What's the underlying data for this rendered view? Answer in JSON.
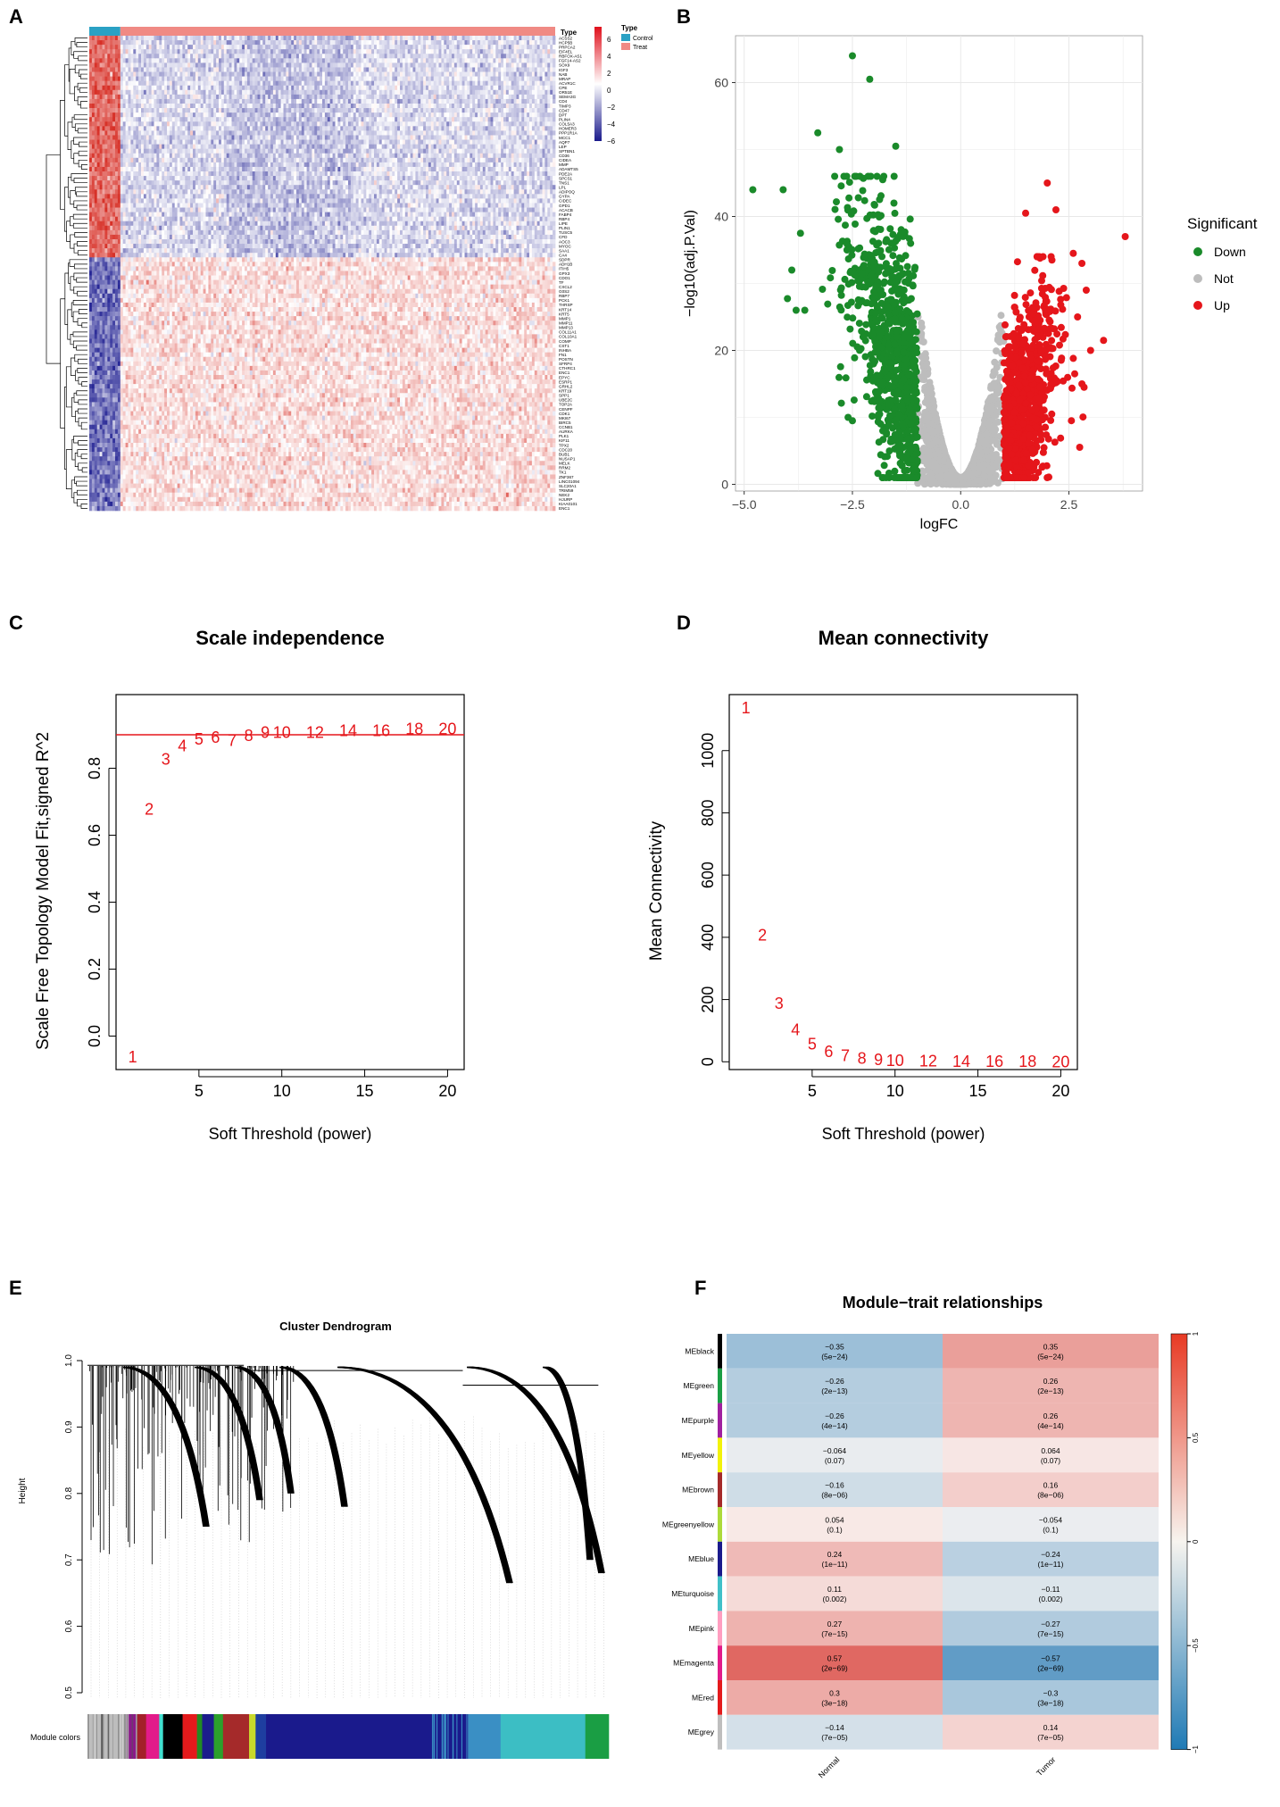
{
  "panel_labels": [
    "A",
    "B",
    "C",
    "D",
    "E",
    "F"
  ],
  "chart_data": [
    {
      "id": "A",
      "type": "heatmap",
      "annotation_title": "Type",
      "legend_title": "Type",
      "legend_entries": [
        {
          "label": "Control",
          "color": "#2aa1c4"
        },
        {
          "label": "Treat",
          "color": "#f08a84"
        }
      ],
      "color_scale": {
        "ticks": [
          "6",
          "4",
          "2",
          "0",
          "−2",
          "−4",
          "−6"
        ],
        "colors": [
          "#d7191c",
          "#ffffff",
          "#1a1a8c"
        ]
      },
      "genes": [
        "ACSS2",
        "HCP5B",
        "PRPCA2",
        "EIF4EL",
        "RBFOX-AS1",
        "FGF14-AS2",
        "SOX9",
        "IGF3",
        "NAB",
        "MRAP",
        "ACVR1C",
        "CPE",
        "OR51E",
        "SEMA3G",
        "CD4",
        "TIMP3",
        "CD47",
        "DPT",
        "PLIN4",
        "COL5A3",
        "HOMER3",
        "PPP1R1A",
        "MCC1",
        "AQP7",
        "LEP",
        "SPTBN1",
        "CD36",
        "CIDEA",
        "MMP",
        "ADAMTS5",
        "PDE2A",
        "SPCS1",
        "TNS1",
        "LPL",
        "ADIPOQ",
        "GYPA",
        "CIDEC",
        "GPD1",
        "ACACB",
        "FABP4",
        "RBP4",
        "LIPE",
        "PLIN1",
        "TUSC5",
        "CFD",
        "AOC3",
        "MYOC",
        "SAA1",
        "CA4",
        "SDPR",
        "ADH1B",
        "ITIH5",
        "GPX3",
        "CDO1",
        "TF",
        "CXCL2",
        "G0S2",
        "RBP7",
        "PCK1",
        "THRSP",
        "KRT14",
        "KRT5",
        "MMP1",
        "MMP11",
        "MMP13",
        "COL11A1",
        "COL10A1",
        "COMP",
        "CST1",
        "INHBA",
        "FN1",
        "POSTN",
        "SFRP4",
        "CTHRC1",
        "ENC1",
        "EPYC",
        "ESRP1",
        "GRHL2",
        "KRT19",
        "SPP1",
        "UBE2C",
        "TOP2A",
        "CENPF",
        "CDK1",
        "MKI67",
        "BIRC5",
        "CCNB1",
        "AURKA",
        "PLK1",
        "KIF11",
        "TPX2",
        "CDC20",
        "BUB1",
        "NUSAP1",
        "MELK",
        "RRM2",
        "TK1",
        "ZNF367",
        "LINC01094",
        "SLC20A1",
        "TRIM59",
        "NEK2",
        "HJURP",
        "KIAA0101",
        "ENC1"
      ],
      "n_samples": 180,
      "n_control": 12
    },
    {
      "id": "B",
      "type": "scatter",
      "xlabel": "logFC",
      "ylabel": "−log10(adj.P.Val)",
      "xlim": [
        -5.2,
        4.2
      ],
      "ylim": [
        -1,
        67
      ],
      "xticks": [
        -5,
        -2.5,
        0,
        2.5
      ],
      "xtick_labels": [
        "−5.0",
        "−2.5",
        "0.0",
        "2.5"
      ],
      "yticks": [
        0,
        20,
        40,
        60
      ],
      "legend_title": "Significant",
      "series": [
        {
          "name": "Down",
          "color": "#1a8a2a"
        },
        {
          "name": "Not",
          "color": "#bdbdbd"
        },
        {
          "name": "Up",
          "color": "#e5161b"
        }
      ],
      "highlight_points": {
        "Down": [
          [
            -4.8,
            44
          ],
          [
            -4.1,
            44
          ],
          [
            -3.3,
            52.5
          ],
          [
            -2.5,
            64
          ],
          [
            -2.1,
            60.5
          ],
          [
            -1.5,
            50.5
          ],
          [
            -2.8,
            50
          ],
          [
            -3.7,
            37.5
          ],
          [
            -3.8,
            26
          ],
          [
            -3.6,
            26
          ],
          [
            -3.9,
            32
          ],
          [
            -2.6,
            10
          ],
          [
            -2.5,
            9.5
          ],
          [
            -1.8,
            45.5
          ]
        ],
        "Up": [
          [
            2.0,
            45
          ],
          [
            2.2,
            41
          ],
          [
            1.5,
            40.5
          ],
          [
            3.8,
            37
          ],
          [
            2.6,
            34.5
          ],
          [
            2.8,
            33
          ],
          [
            2.9,
            29
          ],
          [
            3.3,
            21.5
          ],
          [
            3.0,
            20
          ],
          [
            2.7,
            25
          ],
          [
            2.8,
            15
          ],
          [
            2.85,
            14.5
          ]
        ]
      }
    },
    {
      "id": "C",
      "type": "scatter",
      "title": "Scale independence",
      "xlabel": "Soft Threshold (power)",
      "ylabel": "Scale Free Topology Model Fit,signed R^2",
      "xlim": [
        0,
        21
      ],
      "ylim": [
        -0.1,
        1.02
      ],
      "xticks": [
        5,
        10,
        15,
        20
      ],
      "yticks": [
        0.0,
        0.2,
        0.4,
        0.6,
        0.8
      ],
      "ytick_labels": [
        "0.0",
        "0.2",
        "0.4",
        "0.6",
        "0.8"
      ],
      "threshold_line": 0.9,
      "points": [
        {
          "power": 1,
          "value": -0.06
        },
        {
          "power": 2,
          "value": 0.68
        },
        {
          "power": 3,
          "value": 0.83
        },
        {
          "power": 4,
          "value": 0.87
        },
        {
          "power": 5,
          "value": 0.89
        },
        {
          "power": 6,
          "value": 0.895
        },
        {
          "power": 7,
          "value": 0.885
        },
        {
          "power": 8,
          "value": 0.9
        },
        {
          "power": 9,
          "value": 0.91
        },
        {
          "power": 10,
          "value": 0.91
        },
        {
          "power": 12,
          "value": 0.91
        },
        {
          "power": 14,
          "value": 0.915
        },
        {
          "power": 16,
          "value": 0.915
        },
        {
          "power": 18,
          "value": 0.92
        },
        {
          "power": 20,
          "value": 0.92
        }
      ]
    },
    {
      "id": "D",
      "type": "scatter",
      "title": "Mean connectivity",
      "xlabel": "Soft Threshold (power)",
      "ylabel": "Mean Connectivity",
      "xlim": [
        0,
        21
      ],
      "ylim": [
        -25,
        1180
      ],
      "xticks": [
        5,
        10,
        15,
        20
      ],
      "yticks": [
        0,
        200,
        400,
        600,
        800,
        1000
      ],
      "points": [
        {
          "power": 1,
          "value": 1140
        },
        {
          "power": 2,
          "value": 410
        },
        {
          "power": 3,
          "value": 190
        },
        {
          "power": 4,
          "value": 105
        },
        {
          "power": 5,
          "value": 60
        },
        {
          "power": 6,
          "value": 35
        },
        {
          "power": 7,
          "value": 22
        },
        {
          "power": 8,
          "value": 14
        },
        {
          "power": 9,
          "value": 9
        },
        {
          "power": 10,
          "value": 7
        },
        {
          "power": 12,
          "value": 5
        },
        {
          "power": 14,
          "value": 4
        },
        {
          "power": 16,
          "value": 3
        },
        {
          "power": 18,
          "value": 3
        },
        {
          "power": 20,
          "value": 2
        }
      ]
    },
    {
      "id": "E",
      "type": "dendrogram",
      "title": "Cluster Dendrogram",
      "ylabel": "Height",
      "ylim": [
        0.5,
        1.0
      ],
      "yticks": [
        0.5,
        0.6,
        0.7,
        0.8,
        0.9,
        1.0
      ],
      "ytick_labels": [
        "0.5",
        "0.6",
        "0.7",
        "0.8",
        "0.9",
        "1.0"
      ],
      "color_bar_label": "Module colors",
      "module_bar": [
        {
          "color": "#bdbdbd",
          "width": 6
        },
        {
          "color": "#8b1a89",
          "width": 1.5
        },
        {
          "color": "#a32029",
          "width": 1.5
        },
        {
          "color": "#e21b8a",
          "width": 2
        },
        {
          "color": "#40e0d0",
          "width": 0.6
        },
        {
          "color": "#000000",
          "width": 3
        },
        {
          "color": "#e41a1c",
          "width": 2.2
        },
        {
          "color": "#228b22",
          "width": 0.8
        },
        {
          "color": "#1c1c8c",
          "width": 1.8
        },
        {
          "color": "#2ca02c",
          "width": 1.4
        },
        {
          "color": "#a52a2a",
          "width": 4
        },
        {
          "color": "#c8d92b",
          "width": 1
        },
        {
          "color": "#1e3ea0",
          "width": 1.6
        },
        {
          "color": "#1a1a8c",
          "width": 31
        },
        {
          "color": "#3a8fc4",
          "width": 5
        },
        {
          "color": "#3cbec4",
          "width": 13
        },
        {
          "color": "#1a9e44",
          "width": 3.6
        }
      ]
    },
    {
      "id": "F",
      "type": "heatmap",
      "title": "Module−trait relationships",
      "columns": [
        "Normal",
        "Tumor"
      ],
      "rows": [
        {
          "module": "MEblack",
          "color": "#000000",
          "normal": -0.35,
          "normal_p": "(5e−24)",
          "tumor": 0.35,
          "tumor_p": "(5e−24)",
          "normal_label": "−0.35",
          "tumor_label": "0.35"
        },
        {
          "module": "MEgreen",
          "color": "#1a9e44",
          "normal": -0.26,
          "normal_p": "(2e−13)",
          "tumor": 0.26,
          "tumor_p": "(2e−13)",
          "normal_label": "−0.26",
          "tumor_label": "0.26"
        },
        {
          "module": "MEpurple",
          "color": "#a020a0",
          "normal": -0.26,
          "normal_p": "(4e−14)",
          "tumor": 0.26,
          "tumor_p": "(4e−14)",
          "normal_label": "−0.26",
          "tumor_label": "0.26"
        },
        {
          "module": "MEyellow",
          "color": "#f2f20a",
          "normal": -0.064,
          "normal_p": "(0.07)",
          "tumor": 0.064,
          "tumor_p": "(0.07)",
          "normal_label": "−0.064",
          "tumor_label": "0.064"
        },
        {
          "module": "MEbrown",
          "color": "#a52a2a",
          "normal": -0.16,
          "normal_p": "(8e−06)",
          "tumor": 0.16,
          "tumor_p": "(8e−06)",
          "normal_label": "−0.16",
          "tumor_label": "0.16"
        },
        {
          "module": "MEgreenyellow",
          "color": "#adda3a",
          "normal": 0.054,
          "normal_p": "(0.1)",
          "tumor": -0.054,
          "tumor_p": "(0.1)",
          "normal_label": "0.054",
          "tumor_label": "−0.054"
        },
        {
          "module": "MEblue",
          "color": "#1a1a8c",
          "normal": 0.24,
          "normal_p": "(1e−11)",
          "tumor": -0.24,
          "tumor_p": "(1e−11)",
          "normal_label": "0.24",
          "tumor_label": "−0.24"
        },
        {
          "module": "MEturquoise",
          "color": "#40c0c8",
          "normal": 0.11,
          "normal_p": "(0.002)",
          "tumor": -0.11,
          "tumor_p": "(0.002)",
          "normal_label": "0.11",
          "tumor_label": "−0.11"
        },
        {
          "module": "MEpink",
          "color": "#ff9ec0",
          "normal": 0.27,
          "normal_p": "(7e−15)",
          "tumor": -0.27,
          "tumor_p": "(7e−15)",
          "normal_label": "0.27",
          "tumor_label": "−0.27"
        },
        {
          "module": "MEmagenta",
          "color": "#e21b8a",
          "normal": 0.57,
          "normal_p": "(2e−69)",
          "tumor": -0.57,
          "tumor_p": "(2e−69)",
          "normal_label": "0.57",
          "tumor_label": "−0.57"
        },
        {
          "module": "MEred",
          "color": "#e41a1c",
          "normal": 0.3,
          "normal_p": "(3e−18)",
          "tumor": -0.3,
          "tumor_p": "(3e−18)",
          "normal_label": "0.3",
          "tumor_label": "−0.3"
        },
        {
          "module": "MEgrey",
          "color": "#bebebe",
          "normal": -0.14,
          "normal_p": "(7e−05)",
          "tumor": 0.14,
          "tumor_p": "(7e−05)",
          "normal_label": "−0.14",
          "tumor_label": "0.14"
        }
      ],
      "color_scale": {
        "ticks": [
          1,
          0.5,
          0,
          -0.5,
          -1
        ],
        "tick_labels": [
          "1",
          "0.5",
          "0",
          "−0.5",
          "−1"
        ]
      }
    }
  ]
}
